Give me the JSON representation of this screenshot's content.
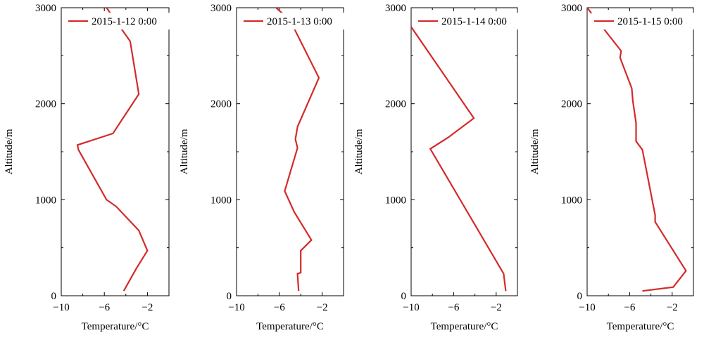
{
  "colors": {
    "line": "#d42a2a",
    "axis": "#000000",
    "background": "#ffffff"
  },
  "chart_data": [
    {
      "type": "line",
      "legend": "2015-1-12 0:00",
      "legend_placement": "top-left",
      "xlabel": "Temperature/°C",
      "ylabel": "Altitude/m",
      "xlim": [
        -10,
        0
      ],
      "ylim": [
        0,
        3000
      ],
      "xticks": [
        "−10",
        "−6",
        "−2"
      ],
      "yticks": [
        "0",
        "1000",
        "2000",
        "3000"
      ],
      "grid": false,
      "series": [
        {
          "x": [
            -4.2,
            -3.0,
            -2.0,
            -2.8,
            -4.9,
            -5.8,
            -8.4,
            -8.5,
            -5.2,
            -2.8,
            -3.6,
            -5.8
          ],
          "y": [
            50,
            290,
            470,
            680,
            930,
            1000,
            1520,
            1570,
            1690,
            2100,
            2650,
            3000
          ]
        }
      ]
    },
    {
      "type": "line",
      "legend": "2015-1-13 0:00",
      "legend_placement": "top-left",
      "xlabel": "Temperature/°C",
      "ylabel": "Altitude/m",
      "xlim": [
        -10,
        0
      ],
      "ylim": [
        0,
        3000
      ],
      "xticks": [
        "−10",
        "−6",
        "−2"
      ],
      "yticks": [
        "0",
        "1000",
        "2000",
        "3000"
      ],
      "grid": false,
      "series": [
        {
          "x": [
            -4.2,
            -4.3,
            -4.0,
            -4.0,
            -3.0,
            -4.6,
            -5.5,
            -4.3,
            -4.5,
            -4.3,
            -2.3,
            -5.0,
            -6.3
          ],
          "y": [
            50,
            230,
            240,
            470,
            580,
            870,
            1090,
            1540,
            1630,
            1760,
            2270,
            2870,
            3000
          ]
        }
      ]
    },
    {
      "type": "line",
      "legend": "2015-1-14 0:00",
      "legend_placement": "top-left",
      "xlabel": "Temperature/°C",
      "ylabel": "Altitude/m",
      "xlim": [
        -10,
        0
      ],
      "ylim": [
        0,
        3000
      ],
      "xticks": [
        "−10",
        "−6",
        "−2"
      ],
      "yticks": [
        "0",
        "1000",
        "2000",
        "3000"
      ],
      "grid": false,
      "series": [
        {
          "x": [
            -1.1,
            -1.3,
            -8.2,
            -6.5,
            -4.1,
            -10.0
          ],
          "y": [
            50,
            230,
            1530,
            1650,
            1850,
            2800
          ]
        }
      ]
    },
    {
      "type": "line",
      "legend": "2015-1-15 0:00",
      "legend_placement": "top-left",
      "xlabel": "Temperature/°C",
      "ylabel": "Altitude/m",
      "xlim": [
        -10,
        0
      ],
      "ylim": [
        0,
        3000
      ],
      "xticks": [
        "−10",
        "−6",
        "−2"
      ],
      "yticks": [
        "0",
        "1000",
        "2000",
        "3000"
      ],
      "grid": false,
      "series": [
        {
          "x": [
            -4.8,
            -1.9,
            -0.7,
            -3.6,
            -3.6,
            -4.8,
            -5.4,
            -5.4,
            -5.7,
            -5.8,
            -6.9,
            -6.8,
            -10.0
          ],
          "y": [
            50,
            90,
            260,
            770,
            840,
            1520,
            1610,
            1800,
            2030,
            2160,
            2480,
            2550,
            3000
          ]
        }
      ]
    }
  ]
}
